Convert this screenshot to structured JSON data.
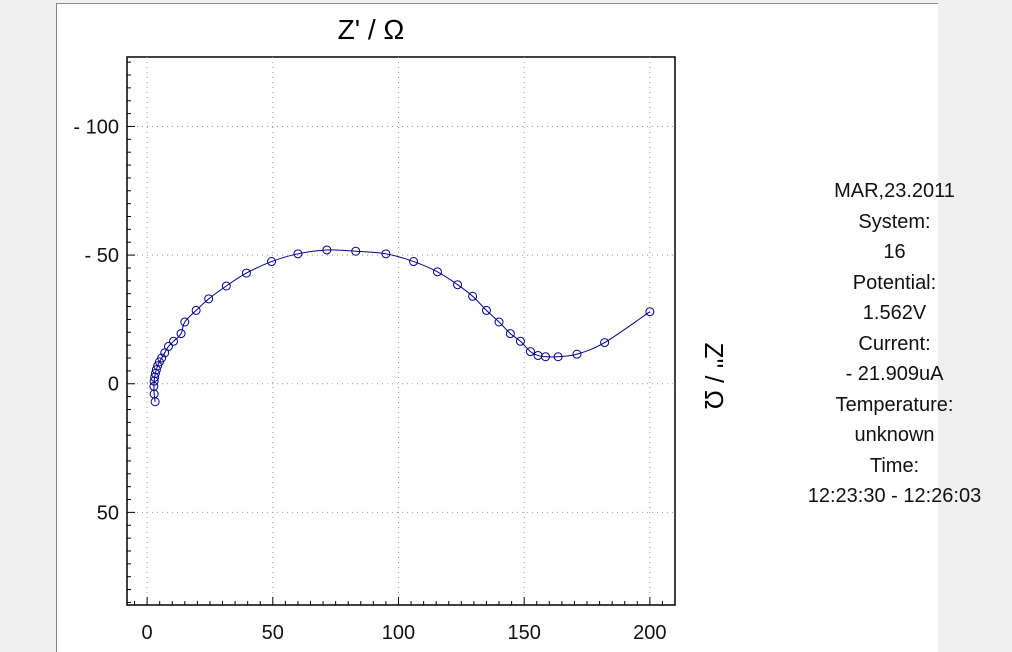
{
  "chart_data": {
    "type": "scatter",
    "title": "Z' / Ω",
    "xlabel": "",
    "ylabel": "Z'' / Ω",
    "xlim": [
      -8,
      210
    ],
    "ylim": [
      -127,
      86
    ],
    "y_inverted": true,
    "grid": true,
    "xticks": [
      0,
      50,
      100,
      150,
      200
    ],
    "xtick_labels": [
      "0",
      "50",
      "100",
      "150",
      "200"
    ],
    "yticks": [
      -100,
      -50,
      0,
      50
    ],
    "ytick_labels": [
      "- 100",
      "- 50",
      "0",
      "50"
    ],
    "series": [
      {
        "color": "#00008b",
        "marker": "open-circle",
        "x": [
          3.2,
          2.8,
          2.7,
          2.8,
          3.0,
          3.3,
          3.7,
          4.2,
          4.9,
          5.8,
          7.0,
          8.5,
          10.5,
          13.5,
          15.0,
          19.5,
          24.5,
          31.5,
          39.5,
          49.5,
          60.0,
          71.5,
          83.0,
          95.0,
          106.0,
          115.5,
          123.5,
          129.5,
          135.0,
          140.0,
          144.5,
          148.5,
          152.5,
          155.5,
          158.5,
          163.5,
          171.0,
          182.0,
          200.0
        ],
        "y": [
          7.0,
          4.0,
          1.0,
          -1.0,
          -2.5,
          -4.0,
          -5.5,
          -7.0,
          -8.5,
          -10.0,
          -12.0,
          -14.5,
          -16.5,
          -19.5,
          -24.0,
          -28.5,
          -33.0,
          -38.0,
          -43.0,
          -47.5,
          -50.5,
          -52.0,
          -51.5,
          -50.5,
          -47.5,
          -43.5,
          -38.5,
          -34.0,
          -28.5,
          -24.0,
          -19.5,
          -16.5,
          -12.5,
          -11.0,
          -10.5,
          -10.5,
          -11.5,
          -16.0,
          -28.0
        ]
      }
    ]
  },
  "info": {
    "date": "MAR,23.2011",
    "system_label": "System:",
    "system_value": "16",
    "potential_label": "Potential:",
    "potential_value": "1.562V",
    "current_label": "Current:",
    "current_value": "- 21.909uA",
    "temperature_label": "Temperature:",
    "temperature_value": "unknown",
    "time_label": "Time:",
    "time_value": "12:23:30 -   12:26:03"
  }
}
